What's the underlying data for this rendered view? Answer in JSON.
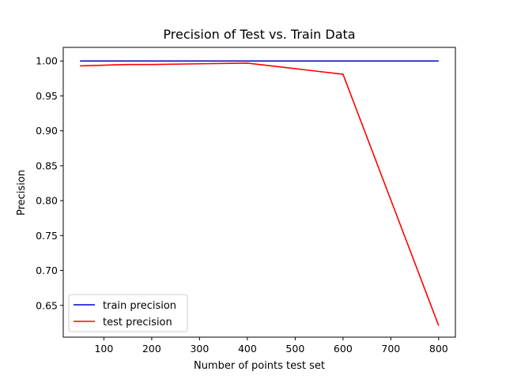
{
  "chart_data": {
    "type": "line",
    "title": "Precision of Test vs. Train Data",
    "xlabel": "Number of points test set",
    "ylabel": "Precision",
    "xlim": [
      15,
      835
    ],
    "ylim": [
      0.6045,
      1.0195
    ],
    "xticks": [
      100,
      200,
      300,
      400,
      500,
      600,
      700,
      800
    ],
    "yticks": [
      0.65,
      0.7,
      0.75,
      0.8,
      0.85,
      0.9,
      0.95,
      1.0
    ],
    "ytick_labels": [
      "0.65",
      "0.70",
      "0.75",
      "0.80",
      "0.85",
      "0.90",
      "0.95",
      "1.00"
    ],
    "grid": false,
    "legend": "lower-left",
    "series": [
      {
        "name": "train precision",
        "color": "#0000cc",
        "x": [
          50,
          150,
          200,
          400,
          600,
          800
        ],
        "y": [
          1.0,
          1.0,
          1.0,
          1.0,
          1.0,
          1.0
        ]
      },
      {
        "name": "test precision",
        "color": "#ff0000",
        "x": [
          50,
          150,
          200,
          400,
          600,
          800
        ],
        "y": [
          0.993,
          0.995,
          0.995,
          0.997,
          0.981,
          0.621
        ]
      }
    ]
  }
}
